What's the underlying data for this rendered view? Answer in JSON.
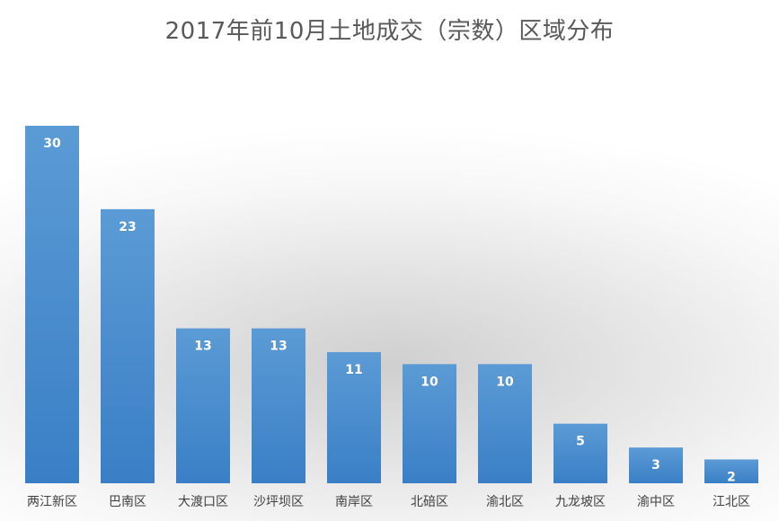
{
  "chart_data": {
    "type": "bar",
    "title": "2017年前10月土地成交（宗数）区域分布",
    "xlabel": "",
    "ylabel": "",
    "categories": [
      "两江新区",
      "巴南区",
      "大渡口区",
      "沙坪坝区",
      "南岸区",
      "北碚区",
      "渝北区",
      "九龙坡区",
      "渝中区",
      "江北区"
    ],
    "values": [
      30,
      23,
      13,
      13,
      11,
      10,
      10,
      5,
      3,
      2
    ],
    "data_labels": true,
    "grid": false,
    "legend": "none",
    "colors": {
      "bar_top": "#5b9bd5",
      "bar_bottom": "#3a7fc6",
      "data_label": "#ffffff",
      "title": "#595959",
      "tick_label": "#404040"
    }
  }
}
